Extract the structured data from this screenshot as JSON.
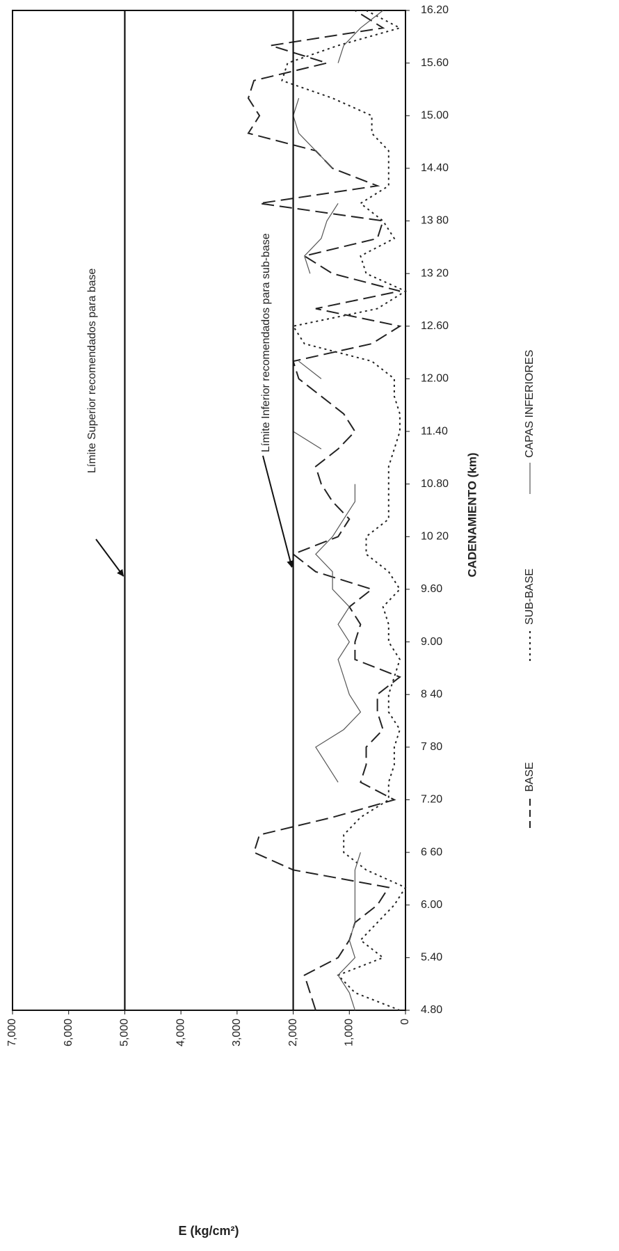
{
  "chart_data": {
    "type": "line",
    "orientation": "rotated",
    "x_label": "CADENAMIENTO (km)",
    "y_label": "E (kg/cm²)",
    "x": [
      4.8,
      5.0,
      5.2,
      5.4,
      5.6,
      5.8,
      6.0,
      6.2,
      6.4,
      6.6,
      6.8,
      7.0,
      7.2,
      7.4,
      7.6,
      7.8,
      8.0,
      8.2,
      8.4,
      8.6,
      8.8,
      9.0,
      9.2,
      9.4,
      9.6,
      9.8,
      10.0,
      10.2,
      10.4,
      10.6,
      10.8,
      11.0,
      11.2,
      11.4,
      11.6,
      11.8,
      12.0,
      12.2,
      12.4,
      12.6,
      12.8,
      13.0,
      13.2,
      13.4,
      13.6,
      13.8,
      14.0,
      14.2,
      14.4,
      14.6,
      14.8,
      15.0,
      15.2,
      15.4,
      15.6,
      15.8,
      16.0,
      16.2
    ],
    "series": [
      {
        "name": "BASE",
        "color": "#222222",
        "style": "dashed",
        "values": [
          1600,
          1700,
          1800,
          1200,
          1000,
          900,
          500,
          300,
          2000,
          2700,
          2600,
          1300,
          200,
          800,
          700,
          700,
          400,
          500,
          500,
          100,
          900,
          900,
          800,
          1000,
          600,
          1600,
          2000,
          1200,
          1000,
          1300,
          1500,
          1600,
          1200,
          900,
          1100,
          1500,
          1900,
          2000,
          600,
          100,
          1600,
          100,
          1300,
          1800,
          500,
          400,
          2600,
          500,
          1300,
          1600,
          2800,
          2600,
          2800,
          2700,
          1400,
          2400,
          400,
          900
        ]
      },
      {
        "name": "SUB-BASE",
        "color": "#222222",
        "style": "dotted",
        "values": [
          100,
          900,
          1200,
          400,
          800,
          500,
          200,
          0,
          700,
          1100,
          1100,
          800,
          300,
          300,
          200,
          200,
          100,
          300,
          300,
          200,
          100,
          300,
          300,
          400,
          100,
          300,
          700,
          700,
          300,
          300,
          300,
          300,
          200,
          100,
          100,
          200,
          200,
          600,
          1800,
          2000,
          500,
          0,
          700,
          800,
          200,
          400,
          800,
          300,
          300,
          300,
          600,
          600,
          1300,
          2200,
          2100,
          1200,
          100,
          700
        ]
      },
      {
        "name": "CAPAS INFERIORES",
        "color": "#555555",
        "style": "solid",
        "values": [
          900,
          1000,
          1200,
          900,
          1000,
          900,
          900,
          900,
          900,
          800,
          null,
          1700,
          null,
          1200,
          1400,
          1600,
          1100,
          800,
          1000,
          1100,
          1200,
          1000,
          1200,
          1000,
          1300,
          1300,
          1600,
          1300,
          1100,
          900,
          900,
          null,
          1500,
          2000,
          null,
          null,
          1500,
          1900,
          null,
          null,
          null,
          null,
          1700,
          1800,
          1500,
          1400,
          1200,
          null,
          1300,
          1600,
          1900,
          2000,
          1900,
          null,
          1200,
          1100,
          800,
          400
        ]
      }
    ],
    "xlim": [
      4.8,
      16.2
    ],
    "xticks": [
      {
        "value": 4.8,
        "label": "4.80"
      },
      {
        "value": 5.4,
        "label": "5.40"
      },
      {
        "value": 6.0,
        "label": "6.00"
      },
      {
        "value": 6.6,
        "label": "6 60"
      },
      {
        "value": 7.2,
        "label": "7.20"
      },
      {
        "value": 7.8,
        "label": "7 80"
      },
      {
        "value": 8.4,
        "label": "8 40"
      },
      {
        "value": 9.0,
        "label": "9.00"
      },
      {
        "value": 9.6,
        "label": "9.60"
      },
      {
        "value": 10.2,
        "label": "10 20"
      },
      {
        "value": 10.8,
        "label": "10.80"
      },
      {
        "value": 11.4,
        "label": "11.40"
      },
      {
        "value": 12.0,
        "label": "12.00"
      },
      {
        "value": 12.6,
        "label": "12.60"
      },
      {
        "value": 13.2,
        "label": "13 20"
      },
      {
        "value": 13.8,
        "label": "13 80"
      },
      {
        "value": 14.4,
        "label": "14.40"
      },
      {
        "value": 15.0,
        "label": "15.00"
      },
      {
        "value": 15.6,
        "label": "15.60"
      },
      {
        "value": 16.2,
        "label": "16.20"
      }
    ],
    "ylim": [
      0,
      7000
    ],
    "yticks": [
      0,
      {
        "value": 1000,
        "label": "1,000"
      },
      {
        "value": 2000,
        "label": "2,000"
      },
      {
        "value": 3000,
        "label": "3,000"
      },
      {
        "value": 4000,
        "label": "4,000"
      },
      {
        "value": 5000,
        "label": "5,000"
      },
      {
        "value": 6000,
        "label": "6,000"
      },
      {
        "value": 7000,
        "label": "7,000"
      }
    ],
    "annotations": [
      {
        "text": "Límite Superior recomendados para base",
        "value": 5000
      },
      {
        "text": "Límite Inferior recomendados para sub-base",
        "value": 2000
      }
    ],
    "grid": false
  }
}
